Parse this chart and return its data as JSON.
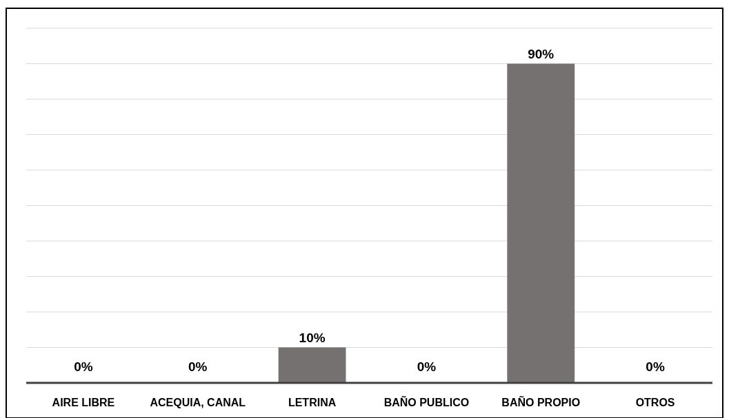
{
  "chart_data": {
    "type": "bar",
    "categories": [
      "AIRE LIBRE",
      "ACEQUIA, CANAL",
      "LETRINA",
      "BAÑO PUBLICO",
      "BAÑO PROPIO",
      "OTROS"
    ],
    "values": [
      0,
      0,
      10,
      0,
      90,
      0
    ],
    "value_labels": [
      "0%",
      "0%",
      "10%",
      "0%",
      "90%",
      "0%"
    ],
    "color": "#767171",
    "ylim": [
      0,
      100
    ],
    "yticks": [
      {
        "value": 0,
        "label": null
      },
      {
        "value": 10,
        "label": null
      },
      {
        "value": 20,
        "label": null
      },
      {
        "value": 30,
        "label": null
      },
      {
        "value": 40,
        "label": null
      },
      {
        "value": 50,
        "label": null
      },
      {
        "value": 60,
        "label": null
      },
      {
        "value": 70,
        "label": null
      },
      {
        "value": 80,
        "label": null
      },
      {
        "value": 90,
        "label": null
      },
      {
        "value": 100,
        "label": null
      }
    ],
    "grid": "y",
    "tick_labels": "x"
  }
}
